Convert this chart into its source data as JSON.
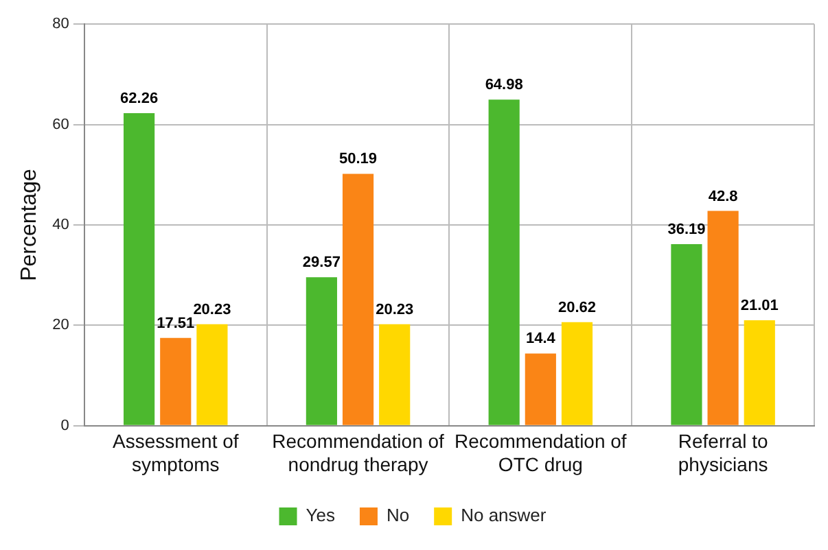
{
  "chart_data": {
    "type": "bar",
    "ylabel": "Percentage",
    "categories": [
      "Assessment of symptoms",
      "Recommendation of nondrug therapy",
      "Recommendation of OTC drug",
      "Referral to physicians"
    ],
    "series": [
      {
        "name": "Yes",
        "color": "#4cb82e",
        "values": [
          62.26,
          29.57,
          64.98,
          36.19
        ]
      },
      {
        "name": "No",
        "color": "#fa8516",
        "values": [
          17.51,
          50.19,
          14.4,
          42.8
        ]
      },
      {
        "name": "No answer",
        "color": "#ffd800",
        "values": [
          20.23,
          20.23,
          20.62,
          21.01
        ]
      }
    ],
    "ylim": [
      0,
      80
    ],
    "yticks": [
      0,
      20,
      40,
      60,
      80
    ],
    "grid": true,
    "legend": "bottom",
    "data_labels": true
  }
}
